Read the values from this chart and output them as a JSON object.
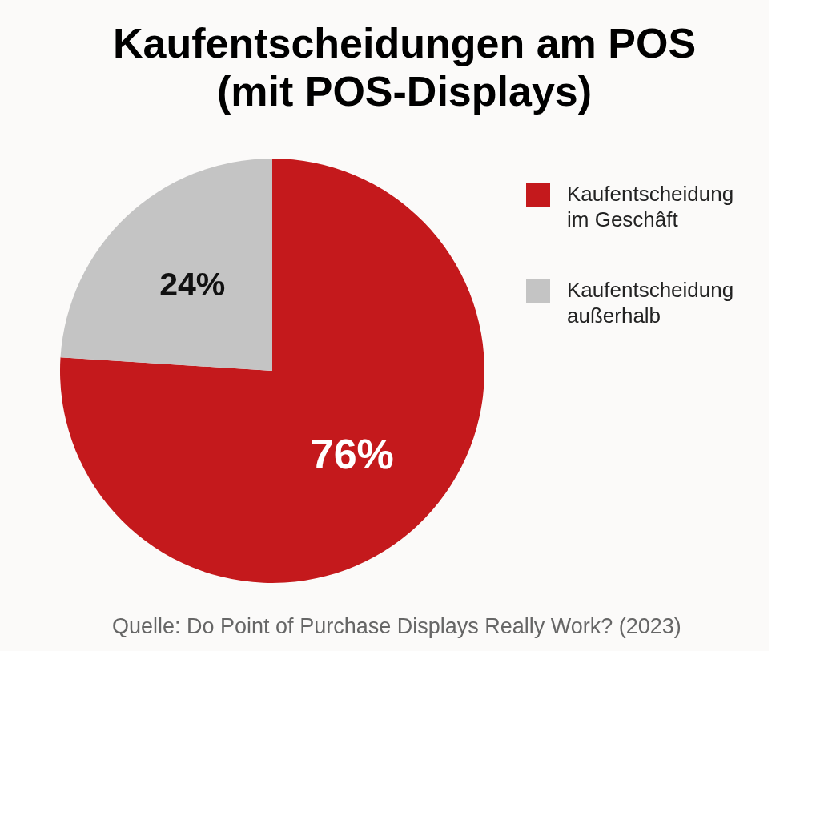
{
  "chart_data": {
    "type": "pie",
    "title": [
      "Kaufentscheidungen am POS",
      "(mit POS-Displays)"
    ],
    "categories": [
      "Kaufentscheidung\nim Geschâft",
      "Kaufentscheidung\naußerhalb"
    ],
    "values": [
      76,
      24
    ],
    "colors": [
      "#c4191c",
      "#c4c4c4"
    ],
    "value_labels": [
      "76%",
      "24%"
    ],
    "legend": "right",
    "annotations": [
      "Quelle: Do Point of Purchase Displays Really Work? (2023)"
    ]
  }
}
